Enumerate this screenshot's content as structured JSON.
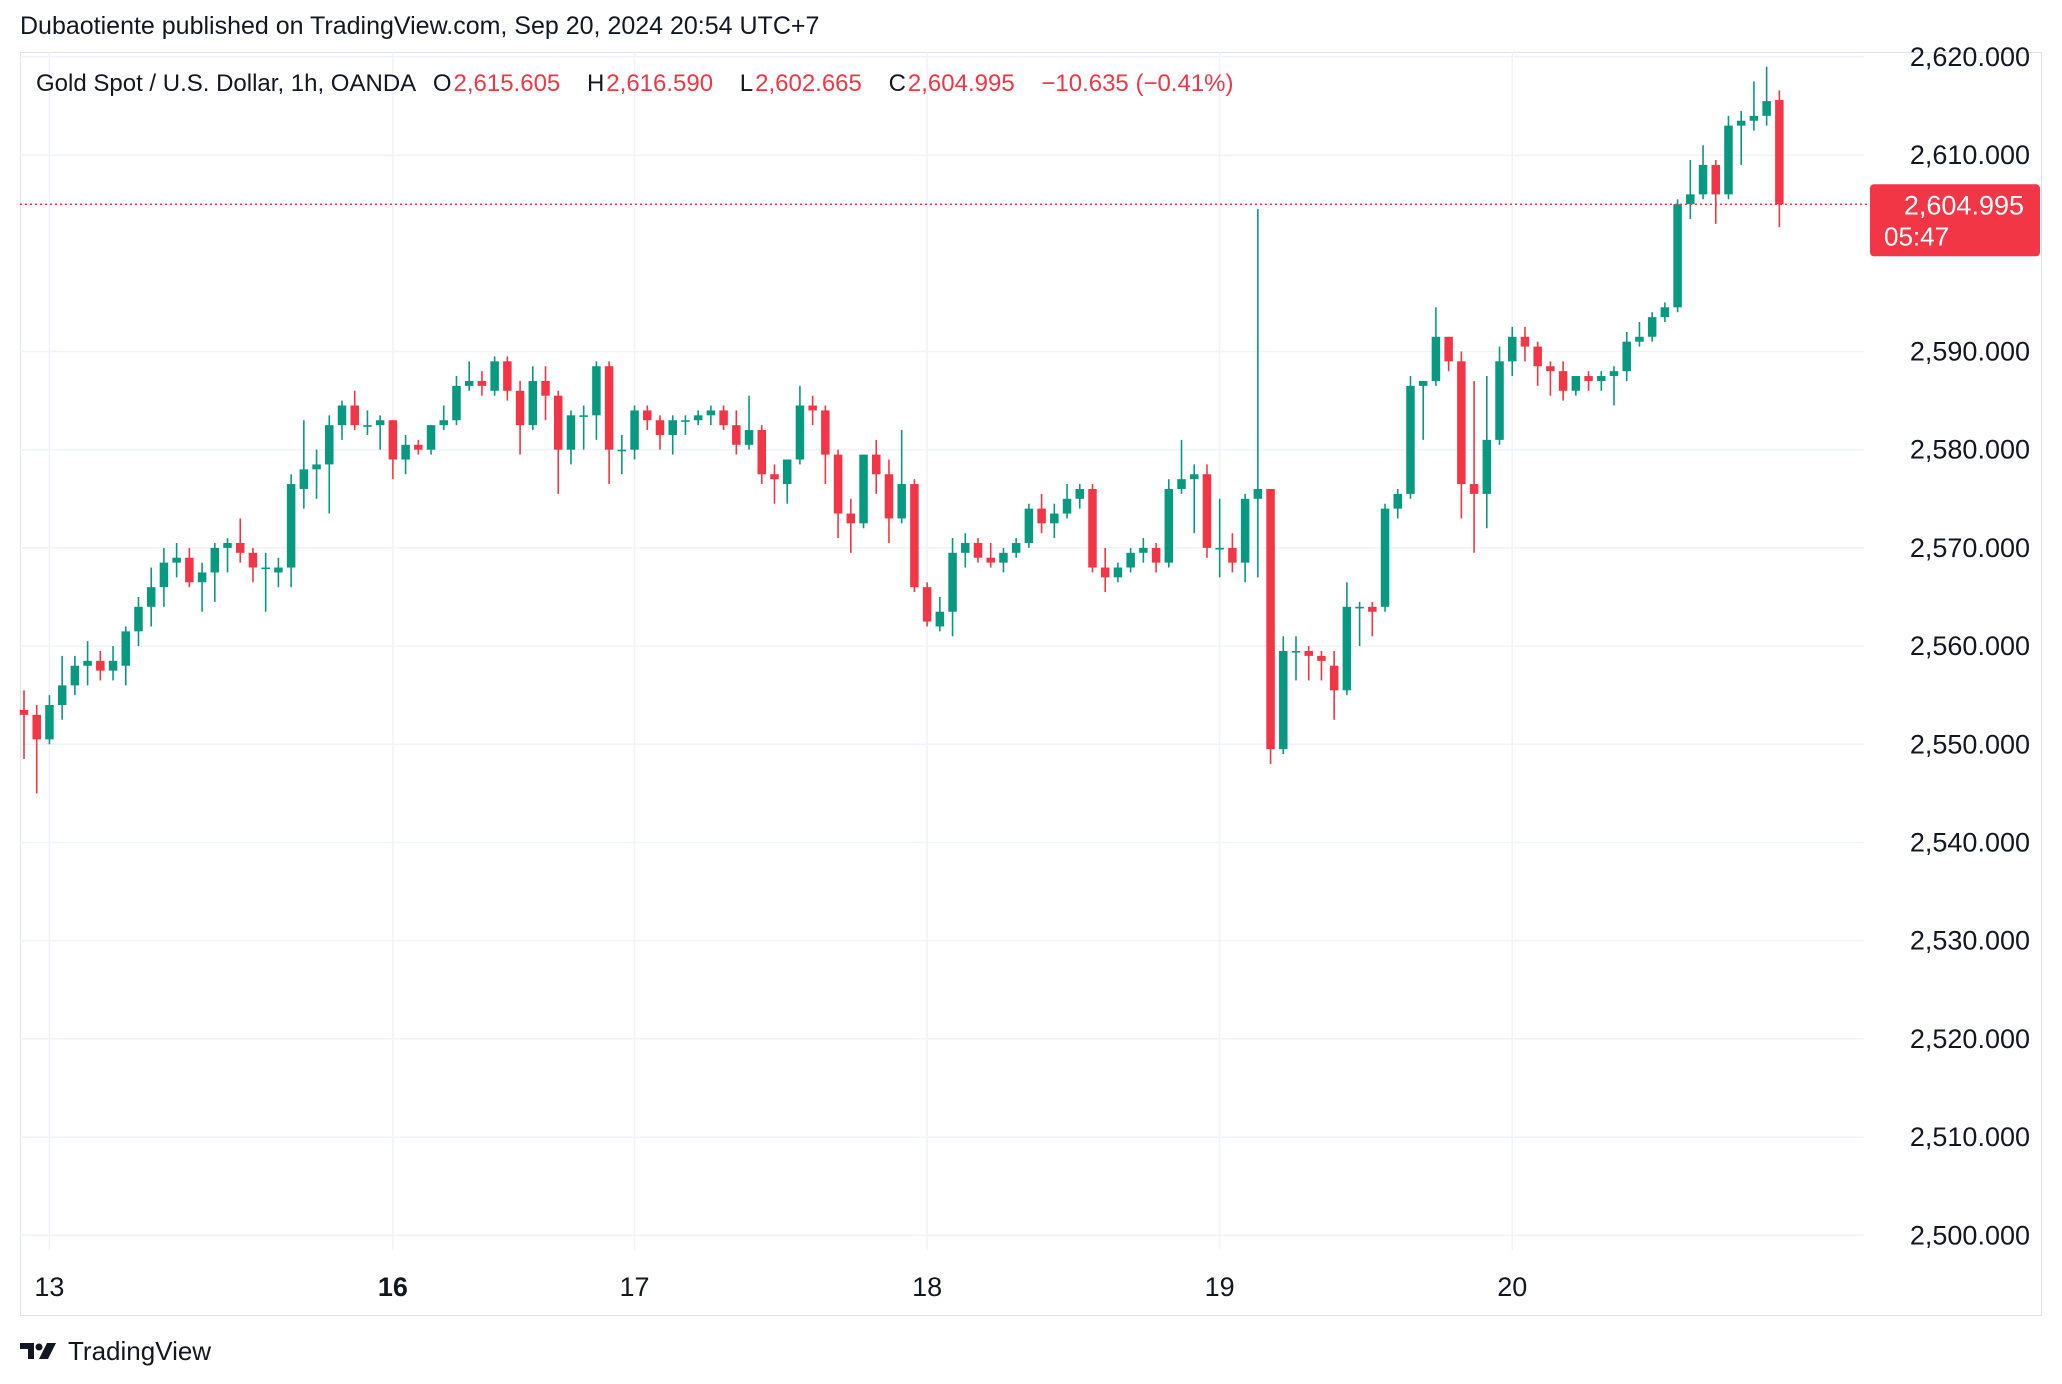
{
  "header": {
    "published": "Dubaotiente published on TradingView.com, Sep 20, 2024 20:54 UTC+7"
  },
  "legend": {
    "symbol": "Gold Spot / U.S. Dollar, 1h, OANDA",
    "open_label": "O",
    "open": "2,615.605",
    "high_label": "H",
    "high": "2,616.590",
    "low_label": "L",
    "low": "2,602.665",
    "close_label": "C",
    "close": "2,604.995",
    "change": "−10.635 (−0.41%)"
  },
  "price_tag": {
    "price": "2,604.995",
    "countdown": "05:47"
  },
  "footer": {
    "brand": "TradingView"
  },
  "colors": {
    "up": "#089981",
    "down": "#f23645",
    "grid": "#f0f3fa",
    "text": "#131722"
  },
  "chart_data": {
    "type": "candlestick",
    "y_tick_labels": [
      "2,620.000",
      "2,610.000",
      "2,590.000",
      "2,580.000",
      "2,570.000",
      "2,560.000",
      "2,550.000",
      "2,540.000",
      "2,530.000",
      "2,520.000",
      "2,510.000",
      "2,500.000"
    ],
    "y_ticks": [
      2620,
      2610,
      2590,
      2580,
      2570,
      2560,
      2550,
      2540,
      2530,
      2520,
      2510,
      2500
    ],
    "ylim": [
      2498.5,
      2620.5
    ],
    "x_tick_labels": [
      {
        "label": "13",
        "bar": 2,
        "bold": false
      },
      {
        "label": "16",
        "bar": 29,
        "bold": true
      },
      {
        "label": "17",
        "bar": 48,
        "bold": false
      },
      {
        "label": "18",
        "bar": 71,
        "bold": false
      },
      {
        "label": "19",
        "bar": 94,
        "bold": false
      },
      {
        "label": "20",
        "bar": 117,
        "bold": false
      }
    ],
    "last_price": 2604.995,
    "candles": [
      [
        2553.5,
        2555.5,
        2548.5,
        2553.0
      ],
      [
        2553.0,
        2554.0,
        2545.0,
        2550.5
      ],
      [
        2550.5,
        2555.0,
        2550.0,
        2554.0
      ],
      [
        2554.0,
        2559.0,
        2552.5,
        2556.0
      ],
      [
        2556.0,
        2559.0,
        2555.0,
        2558.0
      ],
      [
        2558.0,
        2560.5,
        2556.0,
        2558.5
      ],
      [
        2558.5,
        2559.5,
        2556.5,
        2557.5
      ],
      [
        2557.5,
        2560.0,
        2556.5,
        2558.5
      ],
      [
        2558.0,
        2562.0,
        2556.0,
        2561.5
      ],
      [
        2561.5,
        2565.0,
        2560.0,
        2564.0
      ],
      [
        2564.0,
        2568.0,
        2562.0,
        2566.0
      ],
      [
        2566.0,
        2570.0,
        2564.0,
        2568.5
      ],
      [
        2568.5,
        2570.5,
        2567.0,
        2569.0
      ],
      [
        2569.0,
        2570.0,
        2566.0,
        2566.5
      ],
      [
        2566.5,
        2568.5,
        2563.5,
        2567.5
      ],
      [
        2567.5,
        2570.5,
        2564.5,
        2570.0
      ],
      [
        2570.0,
        2571.0,
        2567.5,
        2570.5
      ],
      [
        2570.5,
        2573.0,
        2568.5,
        2569.5
      ],
      [
        2569.5,
        2570.0,
        2566.5,
        2568.0
      ],
      [
        2568.0,
        2569.5,
        2563.5,
        2568.0
      ],
      [
        2567.5,
        2569.0,
        2566.0,
        2568.0
      ],
      [
        2568.0,
        2577.5,
        2566.0,
        2576.5
      ],
      [
        2576.0,
        2583.0,
        2574.0,
        2578.0
      ],
      [
        2578.0,
        2580.0,
        2575.0,
        2578.5
      ],
      [
        2578.5,
        2583.5,
        2573.5,
        2582.5
      ],
      [
        2582.5,
        2585.0,
        2581.0,
        2584.5
      ],
      [
        2584.5,
        2586.0,
        2582.0,
        2582.5
      ],
      [
        2582.5,
        2584.0,
        2581.5,
        2582.5
      ],
      [
        2582.5,
        2583.5,
        2580.0,
        2583.0
      ],
      [
        2583.0,
        2583.0,
        2577.0,
        2579.0
      ],
      [
        2579.0,
        2581.5,
        2577.5,
        2580.5
      ],
      [
        2580.5,
        2581.0,
        2579.5,
        2580.0
      ],
      [
        2580.0,
        2582.5,
        2579.5,
        2582.5
      ],
      [
        2582.5,
        2584.5,
        2582.0,
        2583.0
      ],
      [
        2583.0,
        2587.5,
        2582.5,
        2586.5
      ],
      [
        2586.5,
        2589.0,
        2586.0,
        2587.0
      ],
      [
        2587.0,
        2588.0,
        2585.5,
        2586.5
      ],
      [
        2586.0,
        2589.5,
        2585.5,
        2589.0
      ],
      [
        2589.0,
        2589.5,
        2585.0,
        2586.0
      ],
      [
        2586.0,
        2587.0,
        2579.5,
        2582.5
      ],
      [
        2582.5,
        2588.5,
        2582.0,
        2587.0
      ],
      [
        2587.0,
        2588.5,
        2583.0,
        2585.5
      ],
      [
        2585.5,
        2586.0,
        2575.5,
        2580.0
      ],
      [
        2580.0,
        2584.0,
        2578.5,
        2583.5
      ],
      [
        2583.5,
        2584.5,
        2580.0,
        2583.5
      ],
      [
        2583.5,
        2589.0,
        2581.0,
        2588.5
      ],
      [
        2588.5,
        2589.0,
        2576.5,
        2580.0
      ],
      [
        2580.0,
        2581.5,
        2577.5,
        2580.0
      ],
      [
        2580.0,
        2584.5,
        2579.0,
        2584.0
      ],
      [
        2584.0,
        2584.5,
        2582.0,
        2583.0
      ],
      [
        2583.0,
        2583.5,
        2580.0,
        2581.5
      ],
      [
        2581.5,
        2583.5,
        2579.5,
        2583.0
      ],
      [
        2583.0,
        2583.5,
        2581.5,
        2583.0
      ],
      [
        2583.0,
        2584.0,
        2582.5,
        2583.5
      ],
      [
        2583.5,
        2584.5,
        2582.5,
        2584.0
      ],
      [
        2584.0,
        2584.5,
        2582.0,
        2582.5
      ],
      [
        2582.5,
        2584.0,
        2579.5,
        2580.5
      ],
      [
        2580.5,
        2585.5,
        2580.0,
        2582.0
      ],
      [
        2582.0,
        2582.5,
        2576.5,
        2577.5
      ],
      [
        2577.5,
        2578.5,
        2574.5,
        2577.0
      ],
      [
        2576.5,
        2579.0,
        2574.5,
        2579.0
      ],
      [
        2579.0,
        2586.5,
        2578.5,
        2584.5
      ],
      [
        2584.5,
        2585.5,
        2582.5,
        2584.0
      ],
      [
        2584.0,
        2584.5,
        2576.5,
        2579.5
      ],
      [
        2579.5,
        2580.0,
        2571.0,
        2573.5
      ],
      [
        2573.5,
        2575.0,
        2569.5,
        2572.5
      ],
      [
        2572.5,
        2579.5,
        2572.0,
        2579.5
      ],
      [
        2579.5,
        2581.0,
        2575.5,
        2577.5
      ],
      [
        2577.5,
        2579.0,
        2570.5,
        2573.0
      ],
      [
        2573.0,
        2582.0,
        2572.5,
        2576.5
      ],
      [
        2576.5,
        2577.0,
        2565.5,
        2566.0
      ],
      [
        2566.0,
        2566.5,
        2562.0,
        2562.5
      ],
      [
        2562.0,
        2565.0,
        2561.5,
        2563.5
      ],
      [
        2563.5,
        2571.0,
        2561.0,
        2569.5
      ],
      [
        2569.5,
        2571.5,
        2568.0,
        2570.5
      ],
      [
        2570.5,
        2571.0,
        2568.5,
        2569.0
      ],
      [
        2569.0,
        2570.5,
        2568.0,
        2568.5
      ],
      [
        2568.5,
        2570.0,
        2567.5,
        2569.5
      ],
      [
        2569.5,
        2571.0,
        2569.0,
        2570.5
      ],
      [
        2570.5,
        2574.5,
        2570.0,
        2574.0
      ],
      [
        2574.0,
        2575.5,
        2571.5,
        2572.5
      ],
      [
        2572.5,
        2574.5,
        2571.0,
        2573.5
      ],
      [
        2573.5,
        2576.5,
        2573.0,
        2575.0
      ],
      [
        2575.0,
        2576.5,
        2574.0,
        2576.0
      ],
      [
        2576.0,
        2576.5,
        2567.5,
        2568.0
      ],
      [
        2568.0,
        2570.0,
        2565.5,
        2567.0
      ],
      [
        2567.0,
        2568.5,
        2566.5,
        2568.0
      ],
      [
        2568.0,
        2570.0,
        2567.5,
        2569.5
      ],
      [
        2569.5,
        2571.0,
        2568.5,
        2570.0
      ],
      [
        2570.0,
        2570.5,
        2567.5,
        2568.5
      ],
      [
        2568.5,
        2577.0,
        2568.0,
        2576.0
      ],
      [
        2576.0,
        2581.0,
        2575.5,
        2577.0
      ],
      [
        2577.0,
        2578.5,
        2571.5,
        2577.5
      ],
      [
        2577.5,
        2578.5,
        2569.0,
        2570.0
      ],
      [
        2570.0,
        2575.0,
        2567.0,
        2570.0
      ],
      [
        2570.0,
        2571.5,
        2567.5,
        2568.5
      ],
      [
        2568.5,
        2575.5,
        2566.5,
        2575.0
      ],
      [
        2575.0,
        2604.5,
        2567.0,
        2576.0
      ],
      [
        2576.0,
        2575.5,
        2548.0,
        2549.5
      ],
      [
        2549.5,
        2561.0,
        2549.0,
        2559.5
      ],
      [
        2559.5,
        2561.0,
        2556.5,
        2559.5
      ],
      [
        2559.5,
        2560.0,
        2556.5,
        2559.0
      ],
      [
        2559.0,
        2559.5,
        2556.5,
        2558.5
      ],
      [
        2558.0,
        2559.5,
        2552.5,
        2555.5
      ],
      [
        2555.5,
        2566.5,
        2555.0,
        2564.0
      ],
      [
        2564.0,
        2564.5,
        2560.0,
        2564.0
      ],
      [
        2564.0,
        2564.5,
        2561.0,
        2563.5
      ],
      [
        2564.0,
        2574.5,
        2563.5,
        2574.0
      ],
      [
        2574.0,
        2576.0,
        2573.0,
        2575.5
      ],
      [
        2575.5,
        2587.5,
        2575.0,
        2586.5
      ],
      [
        2586.5,
        2587.0,
        2581.0,
        2587.0
      ],
      [
        2587.0,
        2594.5,
        2586.5,
        2591.5
      ],
      [
        2591.5,
        2591.5,
        2588.0,
        2589.0
      ],
      [
        2589.0,
        2590.0,
        2573.0,
        2576.5
      ],
      [
        2576.5,
        2587.0,
        2569.5,
        2575.5
      ],
      [
        2575.5,
        2587.5,
        2572.0,
        2581.0
      ],
      [
        2581.0,
        2590.5,
        2580.5,
        2589.0
      ],
      [
        2589.0,
        2592.5,
        2587.5,
        2591.5
      ],
      [
        2591.5,
        2592.5,
        2589.0,
        2590.5
      ],
      [
        2590.5,
        2591.0,
        2586.5,
        2588.5
      ],
      [
        2588.5,
        2589.0,
        2585.5,
        2588.0
      ],
      [
        2588.0,
        2589.0,
        2585.0,
        2586.0
      ],
      [
        2586.0,
        2587.5,
        2585.5,
        2587.5
      ],
      [
        2587.5,
        2588.0,
        2586.0,
        2587.0
      ],
      [
        2587.0,
        2588.0,
        2586.0,
        2587.5
      ],
      [
        2587.5,
        2588.5,
        2584.5,
        2588.0
      ],
      [
        2588.0,
        2592.0,
        2587.0,
        2591.0
      ],
      [
        2591.0,
        2593.0,
        2590.5,
        2591.5
      ],
      [
        2591.5,
        2594.0,
        2591.0,
        2593.5
      ],
      [
        2593.5,
        2595.0,
        2593.0,
        2594.5
      ],
      [
        2594.5,
        2605.5,
        2594.0,
        2605.0
      ],
      [
        2605.0,
        2609.5,
        2603.5,
        2606.0
      ],
      [
        2606.0,
        2611.0,
        2605.5,
        2609.0
      ],
      [
        2609.0,
        2609.5,
        2603.0,
        2606.0
      ],
      [
        2606.0,
        2614.0,
        2605.5,
        2613.0
      ],
      [
        2613.0,
        2614.5,
        2609.0,
        2613.5
      ],
      [
        2613.5,
        2617.5,
        2612.5,
        2614.0
      ],
      [
        2614.0,
        2619.0,
        2613.0,
        2615.5
      ],
      [
        2615.605,
        2616.59,
        2602.665,
        2604.995
      ]
    ]
  }
}
